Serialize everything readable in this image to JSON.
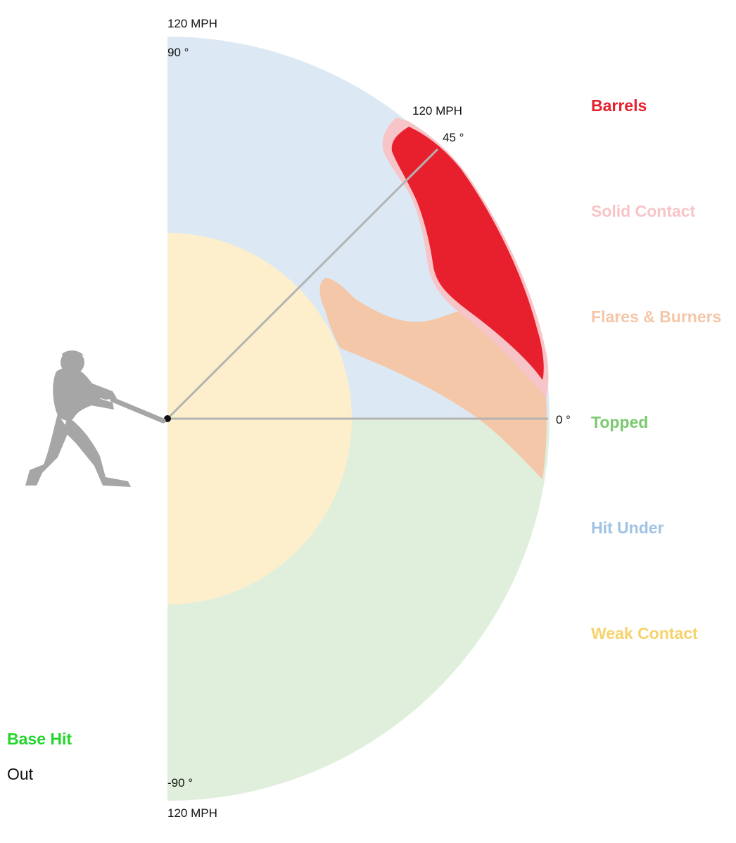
{
  "diagram": {
    "labels": {
      "top_speed": "120 MPH",
      "top_angle": "90 °",
      "mid_speed": "120 MPH",
      "mid_angle": "45 °",
      "zero_angle": "0 °",
      "bottom_angle": "-90 °",
      "bottom_speed": "120 MPH"
    },
    "zones": [
      {
        "name": "Barrels",
        "color": "#e8202e"
      },
      {
        "name": "Solid Contact",
        "color": "#f7c4c8"
      },
      {
        "name": "Flares & Burners",
        "color": "#f3c7a7"
      },
      {
        "name": "Topped",
        "color": "#7ac96f"
      },
      {
        "name": "Hit Under",
        "color": "#9fc3e4"
      },
      {
        "name": "Weak Contact",
        "color": "#f5d36c"
      }
    ],
    "fill_colors": {
      "hit_under": "#dce9f4",
      "topped": "#e0efdb",
      "weak_contact": "#fdefcc",
      "flares_burners": "#f3c7a7",
      "solid_contact": "#f7c4c8",
      "barrels": "#e8202e",
      "batter": "#a6a6a6",
      "guide_lines": "#b3b3b3"
    },
    "outcomes": [
      {
        "name": "Base Hit",
        "color": "#22d62b"
      },
      {
        "name": "Out",
        "color": "#111111"
      }
    ]
  }
}
